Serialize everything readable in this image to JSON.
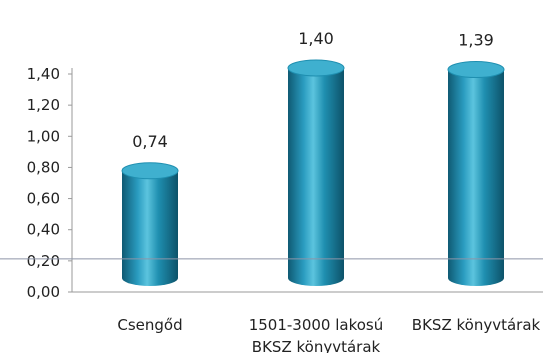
{
  "chart_data": {
    "type": "bar",
    "bar_shape": "cylinder",
    "categories": [
      [
        "Csengőd"
      ],
      [
        "1501-3000 lakosú",
        "BKSZ könyvtárak"
      ],
      [
        "BKSZ könyvtárak"
      ]
    ],
    "values": [
      0.74,
      1.4,
      1.39
    ],
    "data_labels": [
      "0,74",
      "1,40",
      "1,39"
    ],
    "yticks": [
      "0,00",
      "0,20",
      "0,40",
      "0,60",
      "0,80",
      "1,00",
      "1,20",
      "1,40"
    ],
    "ytick_values": [
      0,
      0.2,
      0.4,
      0.6,
      0.8,
      1.0,
      1.2,
      1.4
    ],
    "ylim": [
      0,
      1.4
    ],
    "title": "",
    "xlabel": "",
    "ylabel": "",
    "grid": false,
    "legend": "none",
    "colors": {
      "bar_main": "#1f8fb0",
      "bar_dark": "#0f5a73",
      "bar_light": "#5cc4de",
      "bar_top": "#3fb0cf",
      "axis": "#9a9a9a",
      "reference_line": "#8d95a8"
    }
  }
}
